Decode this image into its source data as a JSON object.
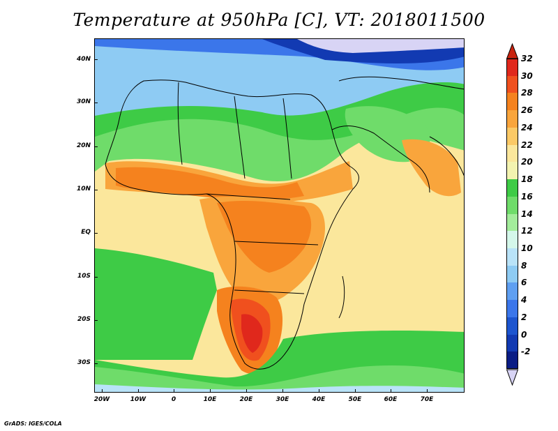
{
  "title": "Temperature at 950hPa [C], VT: 2018011500",
  "credit": "GrADS: IGES/COLA",
  "map": {
    "lat_ticks": [
      "40N",
      "30N",
      "20N",
      "10N",
      "EQ",
      "10S",
      "20S",
      "30S"
    ],
    "lon_ticks": [
      "20W",
      "10W",
      "0",
      "10E",
      "20E",
      "30E",
      "40E",
      "50E",
      "60E",
      "70E"
    ],
    "lon_range": [
      -22,
      80
    ],
    "lat_range": [
      -36,
      45
    ]
  },
  "colorbar": {
    "labels": [
      "32",
      "30",
      "28",
      "26",
      "24",
      "22",
      "20",
      "18",
      "16",
      "14",
      "12",
      "10",
      "8",
      "6",
      "4",
      "2",
      "0",
      "-2"
    ],
    "colors": [
      "#e0281c",
      "#f0501e",
      "#f5821e",
      "#f9a53c",
      "#fbc966",
      "#fbe79c",
      "#f3f3b0",
      "#3ecb46",
      "#6fdc6a",
      "#a3ec9b",
      "#d4f7ea",
      "#b9e3f8",
      "#8ecbf3",
      "#5f9ff1",
      "#3b76ea",
      "#1d55cf",
      "#123ab2",
      "#0a1d85"
    ],
    "top_arrow_color": "#c8230f",
    "bottom_arrow_color": "#d8d4f5"
  }
}
